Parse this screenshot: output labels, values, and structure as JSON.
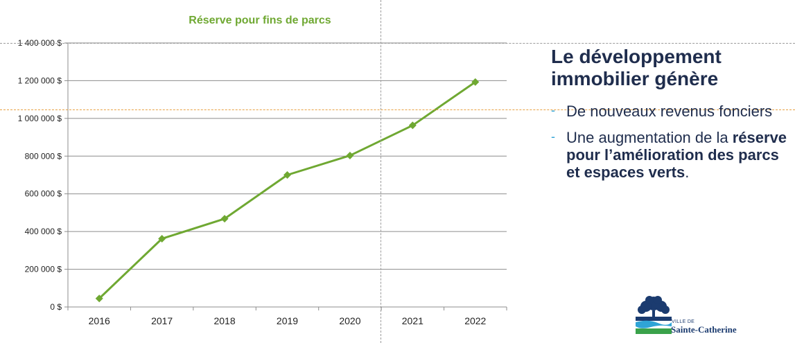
{
  "chart_data": {
    "type": "line",
    "title": "Réserve pour fins de parcs",
    "categories": [
      "2016",
      "2017",
      "2018",
      "2019",
      "2020",
      "2021",
      "2022"
    ],
    "series": [
      {
        "values": [
          45000,
          362000,
          468000,
          700000,
          803000,
          963000,
          1193000
        ]
      }
    ],
    "yticks": [
      "0 $",
      "200 000 $",
      "400 000 $",
      "600 000 $",
      "800 000 $",
      "1 000 000 $",
      "1 200 000 $",
      "1 400 000 $"
    ],
    "ylim": [
      0,
      1400000
    ],
    "grid": true,
    "legend": "none",
    "line_color": "#6fa832"
  },
  "slide": {
    "headline": "Le développement immobilier génère",
    "bullet1": "De nouveaux revenus fonciers",
    "bullet2_plain": "Une augmentation de la ",
    "bullet2_bold": "réserve pour l’amélioration des parcs et espaces verts",
    "bullet2_end": ".",
    "bullet_marker": "-"
  },
  "logo": {
    "small_text": "VILLE DE",
    "name": "Sainte-Catherine",
    "icon": "tree-logo-icon"
  },
  "colors": {
    "headline": "#1f2d4d",
    "accent": "#2fa4d6",
    "chart_title": "#6fa832"
  }
}
